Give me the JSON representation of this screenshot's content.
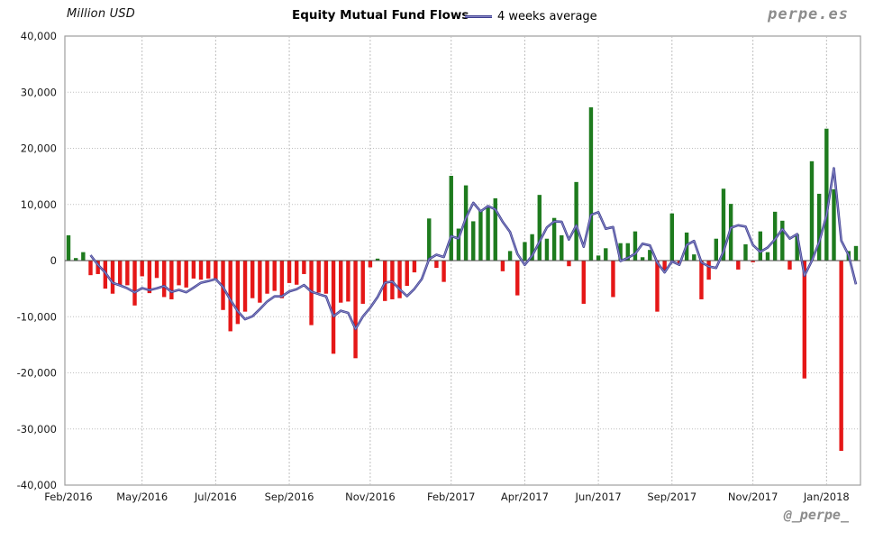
{
  "header": {
    "units_label": "Million USD",
    "title": "Equity Mutual Fund Flows",
    "legend_label": "4 weeks average",
    "watermark": "perpe.es"
  },
  "footer": {
    "handle": "@_perpe_"
  },
  "colors": {
    "positive_bar": "#1e7b1e",
    "negative_bar": "#e51717",
    "average_line": "#3f3f90",
    "average_line_highlight": "#8a8ac8",
    "gridline": "#bfbfbf",
    "plot_border": "#9e9e9e",
    "zero_line": "#4a4a4a",
    "axis_text": "#1a1a1a"
  },
  "chart_data": {
    "type": "bar",
    "title": "Equity Mutual Fund Flows",
    "units": "Million USD",
    "legend": [
      "4 weeks average"
    ],
    "ylim": [
      -40000,
      40000
    ],
    "y_ticks": [
      40000,
      30000,
      20000,
      10000,
      0,
      -10000,
      -20000,
      -30000,
      -40000
    ],
    "x_tick_labels": [
      "Feb/2016",
      "May/2016",
      "Jul/2016",
      "Sep/2016",
      "Nov/2016",
      "Feb/2017",
      "Apr/2017",
      "Jun/2017",
      "Sep/2017",
      "Nov/2017",
      "Jan/2018"
    ],
    "x_tick_week_indices": [
      0,
      10,
      20,
      30,
      41,
      52,
      62,
      72,
      82,
      93,
      103
    ],
    "line": {
      "label": "4 weeks average",
      "window": 4,
      "start_index": 3
    },
    "weekly_flows": [
      4500,
      450,
      1500,
      -2600,
      -2400,
      -5000,
      -5900,
      -4400,
      -4400,
      -8000,
      -2800,
      -5800,
      -3100,
      -6500,
      -6900,
      -4400,
      -4800,
      -3200,
      -3400,
      -3200,
      -3400,
      -8800,
      -12600,
      -11300,
      -9100,
      -6700,
      -7500,
      -5900,
      -5400,
      -6700,
      -4000,
      -4300,
      -2400,
      -11500,
      -5700,
      -5900,
      -16600,
      -7500,
      -7300,
      -17400,
      -7700,
      -1200,
      350,
      -7200,
      -6900,
      -6700,
      -4500,
      -2100,
      100,
      7500,
      -1300,
      -3800,
      15100,
      5700,
      13400,
      7000,
      8900,
      9500,
      11100,
      -1900,
      1700,
      -6200,
      3300,
      4700,
      11700,
      3900,
      7600,
      4500,
      -1000,
      14000,
      -7700,
      27300,
      900,
      2200,
      -6500,
      3100,
      3100,
      5200,
      600,
      1900,
      -9100,
      -1800,
      8400,
      -500,
      5000,
      1100,
      -6900,
      -3400,
      3900,
      12800,
      10100,
      -1600,
      2900,
      -300,
      5200,
      1500,
      8700,
      7100,
      -1600,
      4700,
      -21000,
      17700,
      11900,
      23500,
      12700,
      -33900,
      1700,
      2600
    ]
  }
}
